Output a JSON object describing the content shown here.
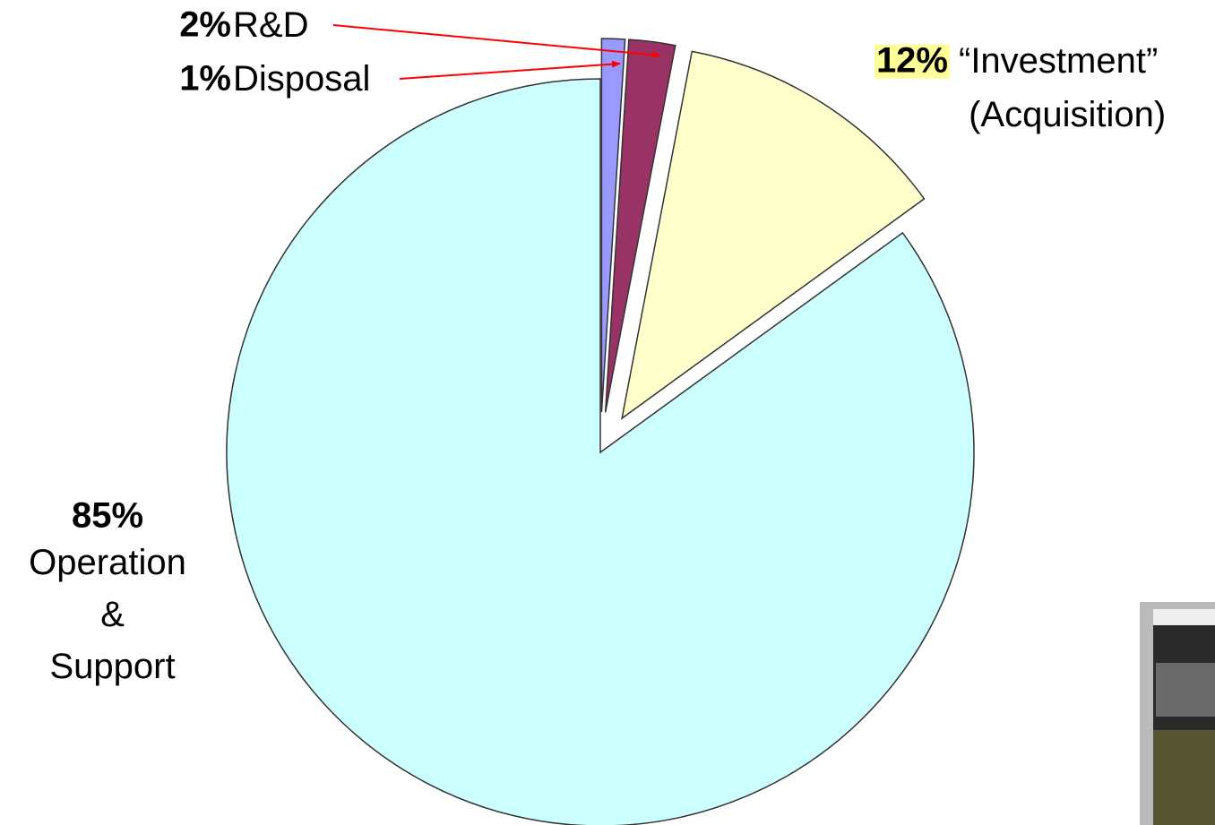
{
  "chart_data": {
    "type": "pie",
    "categories": [
      "Operation & Support",
      "“Investment” (Acquisition)",
      "R&D",
      "Disposal"
    ],
    "values": [
      85,
      12,
      2,
      1
    ],
    "value_labels": [
      "85%",
      "12%",
      "2%",
      "1%"
    ],
    "colors": [
      "#ccffff",
      "#ffffcc",
      "#993366",
      "#9999ff"
    ]
  }
}
